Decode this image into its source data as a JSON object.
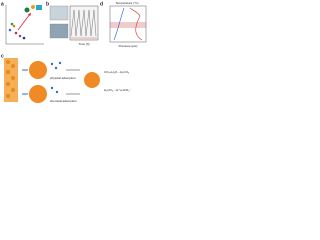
{
  "panels": {
    "a": {
      "label": "a"
    },
    "b": {
      "label": "b",
      "axis_label": "Time (h)"
    },
    "d": {
      "label": "d",
      "x_label": "Pressure (psi)",
      "top_label": "Temperature (°C)"
    },
    "c": {
      "label": "c",
      "steps": [
        "physical adsorption",
        "chemical adsorption"
      ],
      "equations": [
        "CO₂+H₂O→H₂CO₃",
        "H₂CO₃→H⁺+HCO₃⁻"
      ]
    }
  }
}
